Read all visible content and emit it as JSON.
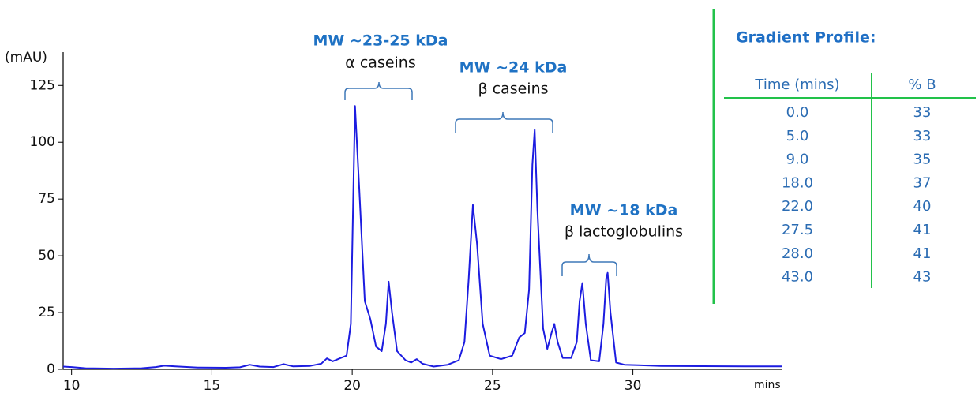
{
  "chart_data": {
    "type": "line",
    "ylabel": "(mAU)",
    "xlabel": "mins",
    "color": "#1c1ce0",
    "xlim": [
      9.7,
      35.3
    ],
    "ylim": [
      0,
      139
    ],
    "xticks": [
      10,
      15,
      20,
      25,
      30
    ],
    "yticks": [
      0,
      25,
      50,
      75,
      100,
      125
    ],
    "x": [
      9.7,
      10.0,
      10.5,
      11.5,
      12.5,
      13.0,
      13.3,
      13.7,
      14.5,
      15.5,
      16.0,
      16.35,
      16.7,
      17.2,
      17.55,
      17.9,
      18.5,
      18.9,
      19.1,
      19.3,
      19.6,
      19.8,
      19.95,
      20.1,
      20.25,
      20.45,
      20.65,
      20.85,
      21.05,
      21.2,
      21.3,
      21.42,
      21.6,
      21.9,
      22.1,
      22.3,
      22.5,
      22.9,
      23.4,
      23.8,
      24.0,
      24.15,
      24.3,
      24.45,
      24.65,
      24.9,
      25.3,
      25.7,
      25.95,
      26.15,
      26.3,
      26.42,
      26.5,
      26.6,
      26.8,
      26.95,
      27.1,
      27.2,
      27.32,
      27.5,
      27.8,
      28.0,
      28.1,
      28.2,
      28.32,
      28.5,
      28.8,
      28.95,
      29.05,
      29.1,
      29.2,
      29.4,
      29.7,
      30.2,
      31,
      32.5,
      34,
      35.3
    ],
    "values": [
      1.2,
      1.0,
      0.5,
      0.3,
      0.5,
      1.0,
      1.6,
      1.3,
      0.8,
      0.7,
      0.9,
      2.0,
      1.2,
      1.0,
      2.3,
      1.3,
      1.5,
      2.5,
      4.8,
      3.5,
      5.0,
      6.0,
      20,
      116,
      80,
      30,
      22,
      10,
      8,
      20,
      38.6,
      25,
      8,
      4,
      3,
      4.5,
      2.5,
      1.2,
      2.0,
      4.0,
      12,
      40,
      72.4,
      55,
      20,
      6,
      4.5,
      6,
      14,
      16,
      35,
      90,
      105.5,
      70,
      18,
      9,
      16,
      20,
      12,
      5,
      5,
      12,
      30,
      38,
      20,
      4,
      3.5,
      20,
      40,
      42.5,
      25,
      3,
      2,
      1.8,
      1.5,
      1.4,
      1.3,
      1.3
    ],
    "annotations": [
      {
        "title": "MW ~23-25 kDa",
        "text": "α caseins"
      },
      {
        "title": "MW ~24 kDa",
        "text": "β caseins"
      },
      {
        "title": "MW ~18 kDa",
        "text": "β lactoglobulins"
      }
    ],
    "inset_table": {
      "title": "Gradient Profile:",
      "columns": [
        "Time (mins)",
        "% B"
      ],
      "rows": [
        [
          "0.0",
          "33"
        ],
        [
          "5.0",
          "33"
        ],
        [
          "9.0",
          "35"
        ],
        [
          "18.0",
          "37"
        ],
        [
          "22.0",
          "40"
        ],
        [
          "27.5",
          "41"
        ],
        [
          "28.0",
          "41"
        ],
        [
          "43.0",
          "43"
        ]
      ]
    }
  }
}
